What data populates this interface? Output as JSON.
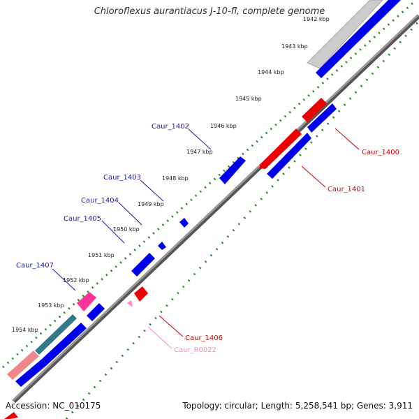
{
  "title": "Chloroflexus aurantiacus J-10-fl, complete genome",
  "footer": {
    "accession": "Accession: NC_010175",
    "topology": "Topology: circular; Length: 5,258,541 bp; Genes: 3,911"
  },
  "colors": {
    "forward_gene": "#0000ee",
    "reverse_gene": "#ee0000",
    "rna_gene": "#ff66cc",
    "label_forward": "#1a1aaa",
    "label_reverse": "#cc0000",
    "label_rna": "#ff88cc",
    "backbone": "#888888",
    "gc_dots": "#228822"
  },
  "scale_ticks": [
    {
      "label": "1942 kbp"
    },
    {
      "label": "1943 kbp"
    },
    {
      "label": "1944 kbp"
    },
    {
      "label": "1945 kbp"
    },
    {
      "label": "1946 kbp"
    },
    {
      "label": "1947 kbp"
    },
    {
      "label": "1948 kbp"
    },
    {
      "label": "1949 kbp"
    },
    {
      "label": "1950 kbp"
    },
    {
      "label": "1951 kbp"
    },
    {
      "label": "1952 kbp"
    },
    {
      "label": "1953 kbp"
    },
    {
      "label": "1954 kbp"
    }
  ],
  "gene_labels": [
    {
      "name": "Caur_1400",
      "strand": "reverse"
    },
    {
      "name": "Caur_1401",
      "strand": "reverse"
    },
    {
      "name": "Caur_1402",
      "strand": "forward"
    },
    {
      "name": "Caur_1403",
      "strand": "forward"
    },
    {
      "name": "Caur_1404",
      "strand": "forward"
    },
    {
      "name": "Caur_1405",
      "strand": "forward"
    },
    {
      "name": "Caur_1406",
      "strand": "reverse"
    },
    {
      "name": "Caur_1407",
      "strand": "forward"
    },
    {
      "name": "Caur_R0022",
      "strand": "rna"
    }
  ]
}
